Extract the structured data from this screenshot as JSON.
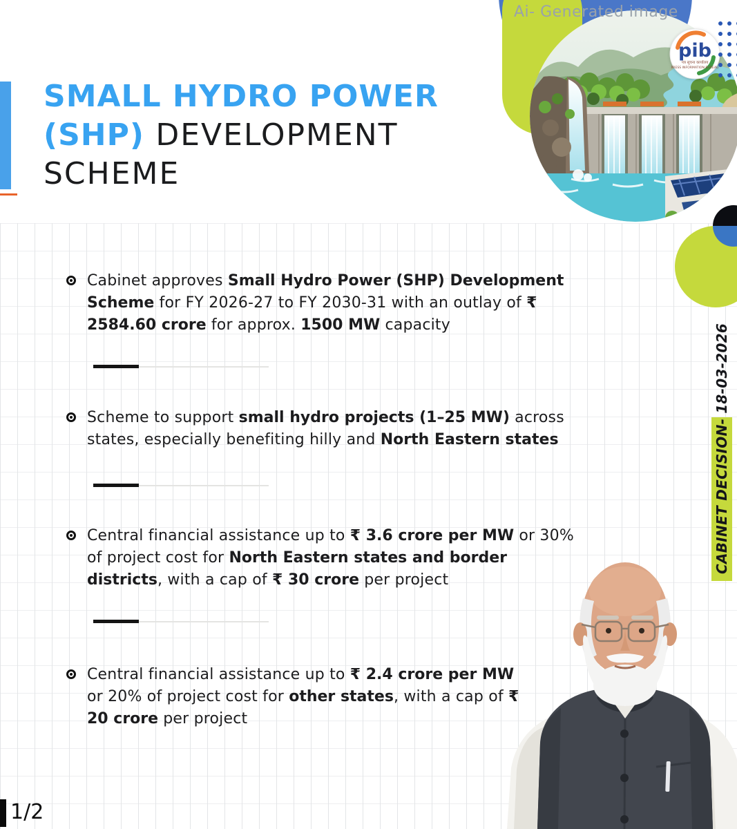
{
  "header": {
    "ai_label": "Ai- Generated image",
    "title": {
      "line1_blue": "SMALL HYDRO POWER",
      "line2_blue": "(SHP)",
      "line2_black": "DEVELOPMENT",
      "line3_black": "SCHEME"
    },
    "pib_logo": {
      "text": "pib",
      "subtext_hindi": "पत्र सूचना कार्यालय",
      "subtext_en": "PRESS INFORMATION BUREAU"
    }
  },
  "bullets": [
    {
      "segments": [
        {
          "text": "Cabinet approves ",
          "bold": false
        },
        {
          "text": "Small Hydro Power (SHP) Development Scheme",
          "bold": true
        },
        {
          "text": " for FY 2026-27 to FY 2030-31 with an outlay of ",
          "bold": false
        },
        {
          "text": "₹ 2584.60 crore",
          "bold": true
        },
        {
          "text": " for approx. ",
          "bold": false
        },
        {
          "text": "1500 MW",
          "bold": true
        },
        {
          "text": " capacity",
          "bold": false
        }
      ]
    },
    {
      "segments": [
        {
          "text": "Scheme to support ",
          "bold": false
        },
        {
          "text": "small hydro projects (1–25 MW)",
          "bold": true
        },
        {
          "text": " across states, especially benefiting hilly and ",
          "bold": false
        },
        {
          "text": "North Eastern states",
          "bold": true
        }
      ]
    },
    {
      "segments": [
        {
          "text": "Central financial assistance up to ",
          "bold": false
        },
        {
          "text": "₹ 3.6 crore per MW",
          "bold": true
        },
        {
          "text": " or 30% of project cost for ",
          "bold": false
        },
        {
          "text": "North Eastern states and border districts",
          "bold": true
        },
        {
          "text": ", with a cap of ",
          "bold": false
        },
        {
          "text": "₹ 30 crore",
          "bold": true
        },
        {
          "text": " per project",
          "bold": false
        }
      ]
    },
    {
      "segments": [
        {
          "text": "Central financial assistance up to ",
          "bold": false
        },
        {
          "text": "₹ 2.4 crore per MW",
          "bold": true
        },
        {
          "text": " or 20% of project cost for ",
          "bold": false
        },
        {
          "text": "other states",
          "bold": true
        },
        {
          "text": ", with a cap of ",
          "bold": false
        },
        {
          "text": "₹ 20 crore",
          "bold": true
        },
        {
          "text": " per project",
          "bold": false
        }
      ]
    }
  ],
  "side_banner": {
    "highlight": "CABINET DECISION-",
    "date": "18-03-2026"
  },
  "footer": {
    "page": "1/2"
  },
  "icons": {
    "bullet_marker": "fisheye-bullet",
    "dots_pattern": "blue-dot-grid",
    "portrait": "pm-modi-photo",
    "hero": "hydro-dam-illustration"
  },
  "colors": {
    "accent_blue": "#38a3f1",
    "royal_blue": "#3a76c4",
    "lime_green": "#c5d93c",
    "text_dark": "#1c1c1e",
    "label_gray": "#99a2ab",
    "orange_accent": "#e8632a"
  }
}
